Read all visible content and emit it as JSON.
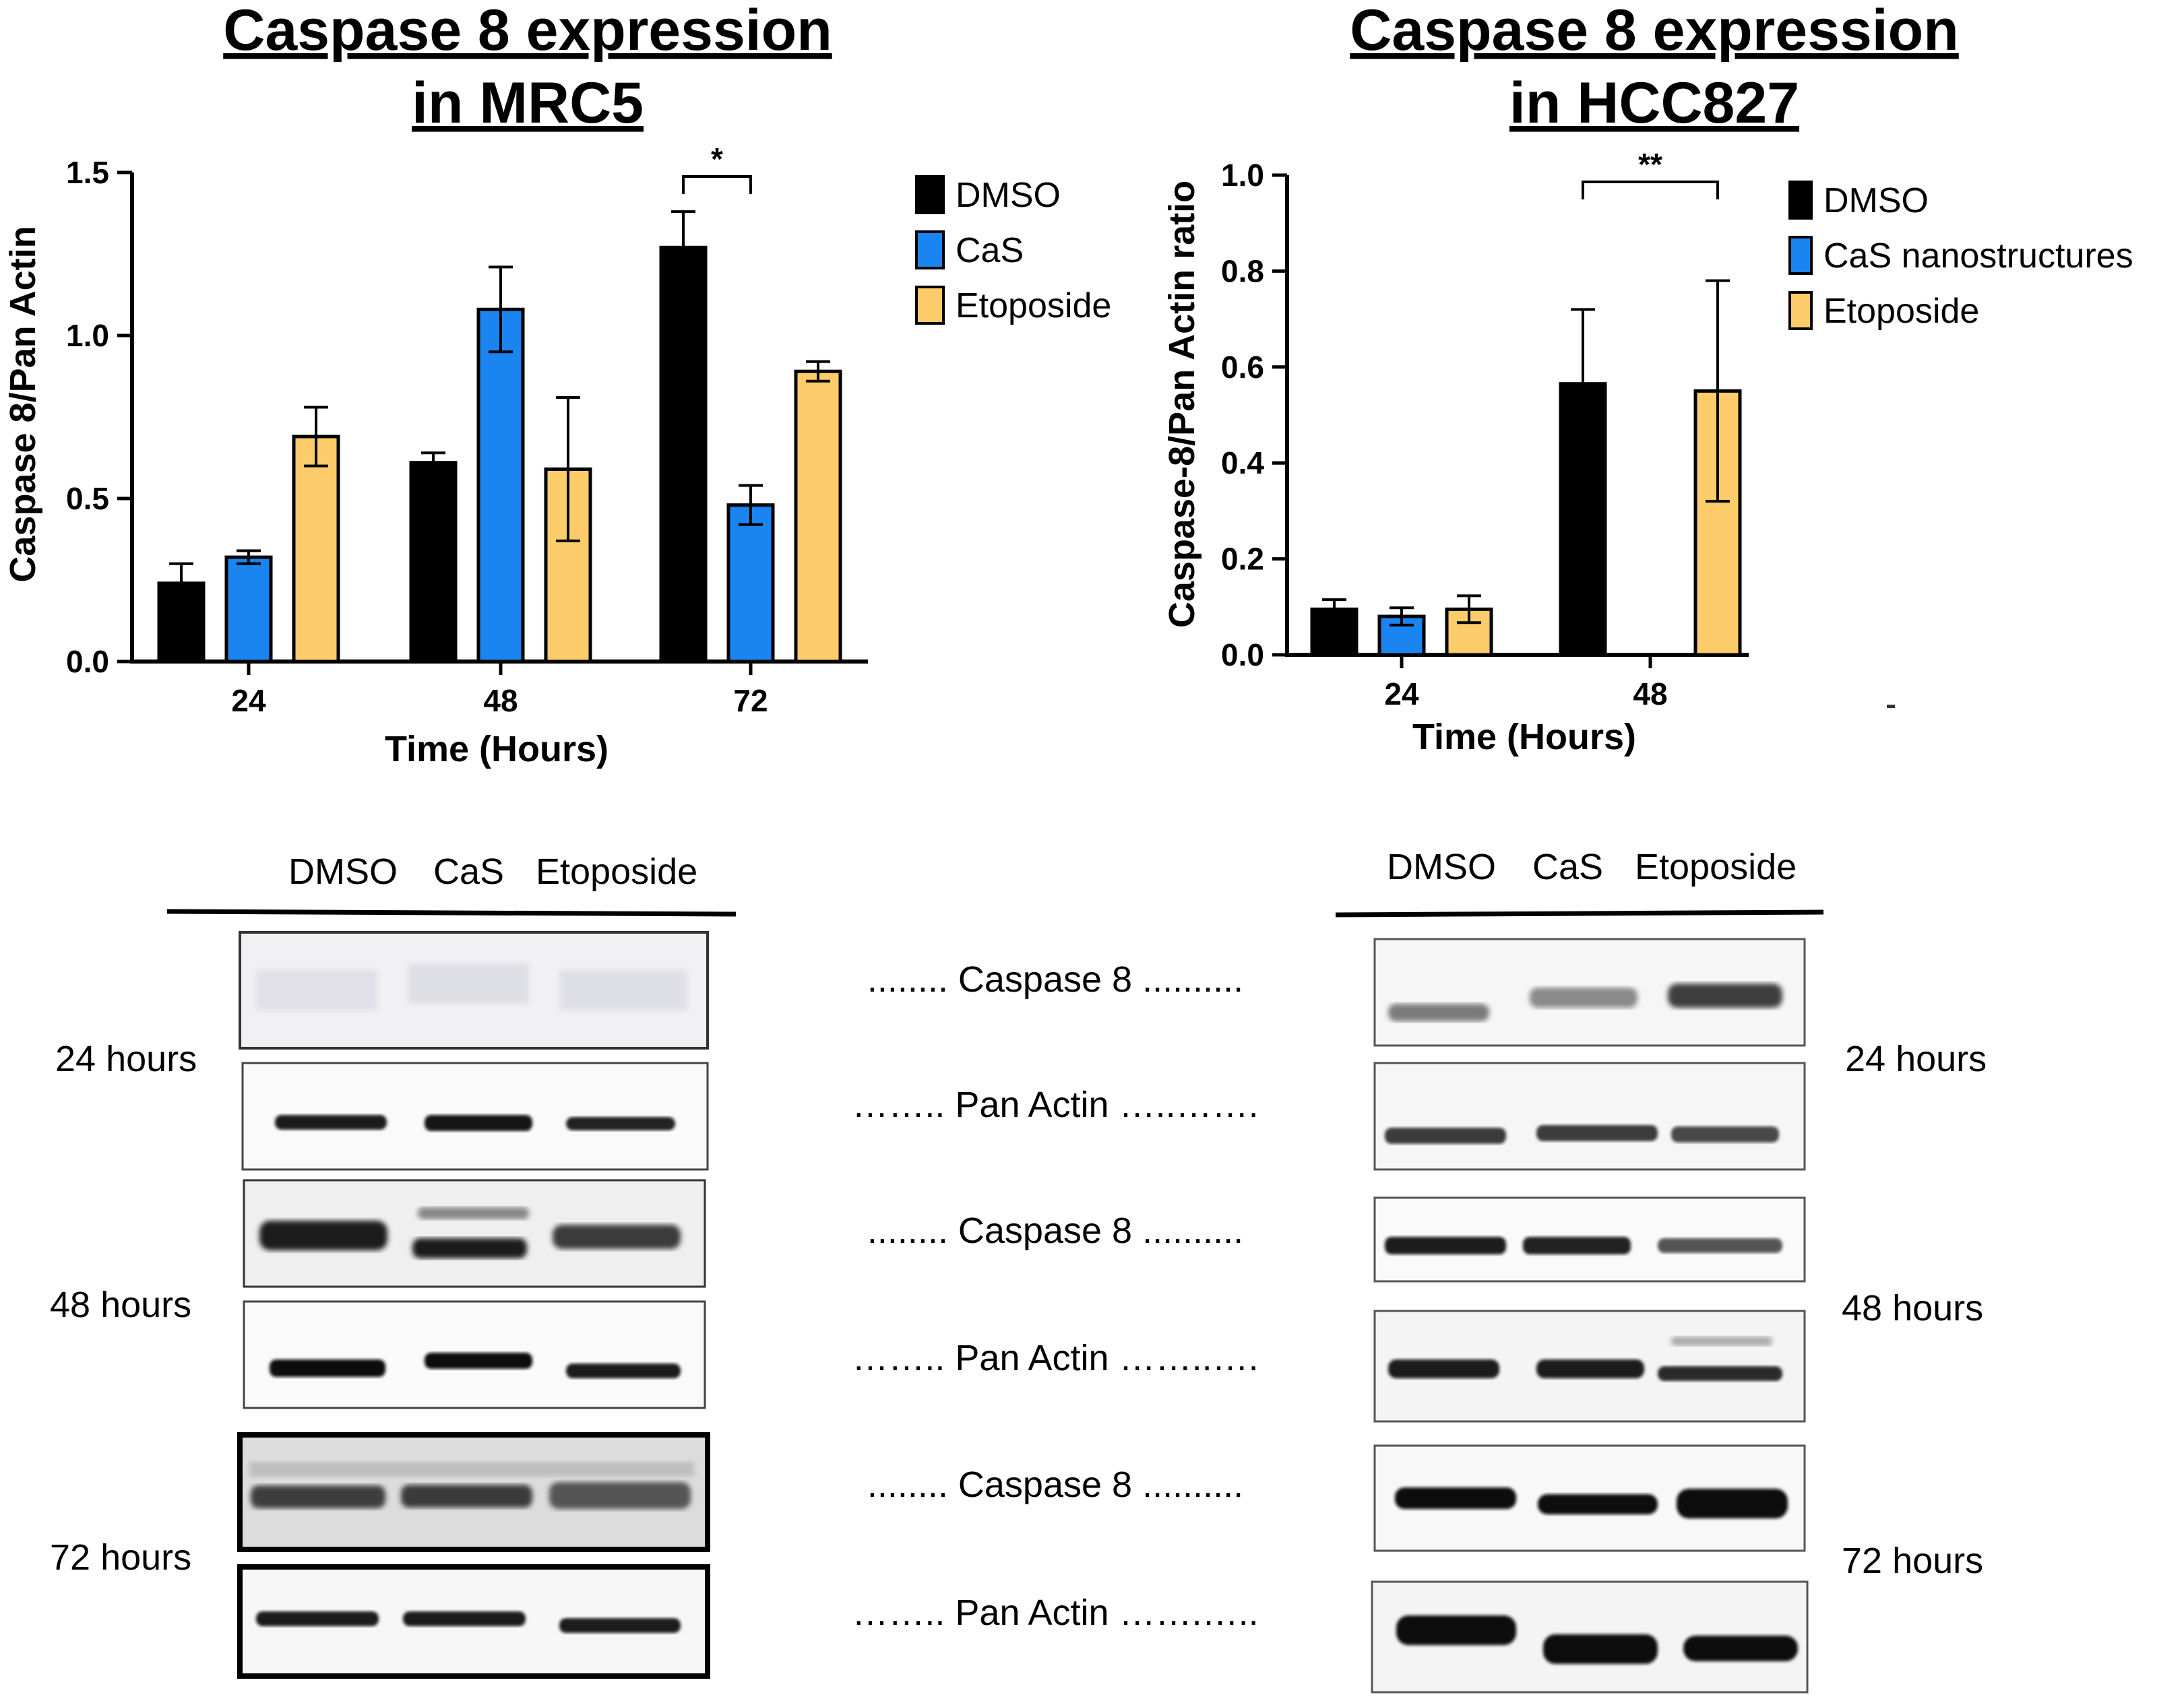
{
  "chart_data": [
    {
      "type": "bar",
      "title": [
        "Caspase 8 expression",
        "in MRC5"
      ],
      "xlabel": "Time (Hours)",
      "ylabel": "Caspase 8/Pan Actin",
      "categories": [
        "24",
        "48",
        "72"
      ],
      "ylim": [
        0,
        1.5
      ],
      "yticks": [
        "0.0",
        "0.5",
        "1.0",
        "1.5"
      ],
      "legend_position": "top-right",
      "series": [
        {
          "name": "DMSO",
          "color": "#000000",
          "values": [
            0.24,
            0.61,
            1.27
          ],
          "errors": [
            0.06,
            0.03,
            0.11
          ]
        },
        {
          "name": "CaS",
          "color": "#1a84f0",
          "values": [
            0.32,
            1.08,
            0.48
          ],
          "errors": [
            0.02,
            0.13,
            0.06
          ]
        },
        {
          "name": "Etoposide",
          "color": "#fccb6a",
          "values": [
            0.69,
            0.59,
            0.89
          ],
          "errors": [
            0.09,
            0.22,
            0.03
          ]
        }
      ],
      "significance": [
        {
          "category": "72",
          "from_series": 0,
          "to_series": 1,
          "label": "*"
        }
      ]
    },
    {
      "type": "bar",
      "title": [
        "Caspase 8 expression",
        "in HCC827"
      ],
      "xlabel": "Time (Hours)",
      "ylabel": "Caspase-8/Pan Actin ratio",
      "categories": [
        "24",
        "48"
      ],
      "ylim": [
        0,
        1.0
      ],
      "yticks": [
        "0.0",
        "0.2",
        "0.4",
        "0.6",
        "0.8",
        "1.0"
      ],
      "legend_position": "top-right",
      "series": [
        {
          "name": "DMSO",
          "color": "#000000",
          "values": [
            0.095,
            0.565
          ],
          "errors": [
            0.02,
            0.155
          ]
        },
        {
          "name": "CaS nanostructures",
          "color": "#1a84f0",
          "values": [
            0.08,
            0.0
          ],
          "errors": [
            0.018,
            0.0
          ]
        },
        {
          "name": "Etoposide",
          "color": "#fccb6a",
          "values": [
            0.095,
            0.55
          ],
          "errors": [
            0.028,
            0.23
          ]
        }
      ],
      "significance": [
        {
          "category": "48",
          "from_series": 0,
          "to_series": 2,
          "label": "**"
        }
      ]
    }
  ],
  "blots": {
    "lane_labels": [
      "DMSO",
      "CaS",
      "Etoposide"
    ],
    "row_labels": [
      "24 hours",
      "48 hours",
      "72 hours"
    ],
    "band_labels": [
      "........ Caspase 8 ..........",
      "…….. Pan Actin …..…….",
      "........ Caspase 8 ..........",
      "…….. Pan Actin ……..….",
      "........ Caspase 8 ..........",
      "…….. Pan Actin …….….."
    ]
  }
}
